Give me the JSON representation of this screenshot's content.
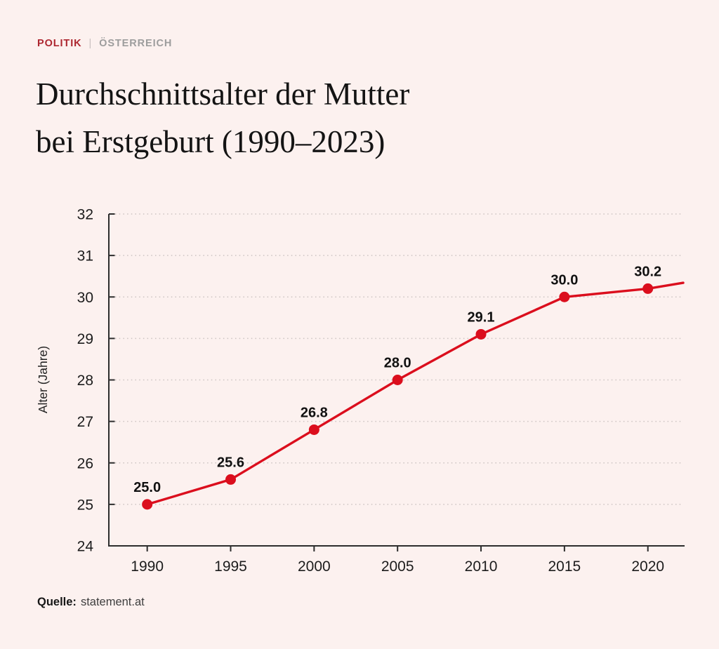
{
  "page": {
    "background": "#fcf1ef"
  },
  "kicker": {
    "category": "POLITIK",
    "separator": "|",
    "region": "ÖSTERREICH",
    "category_color": "#ad2730",
    "region_color": "#9d9d9d",
    "separator_color": "#c9bfbe"
  },
  "title": {
    "line1": "Durchschnittsalter der Mutter",
    "line2": "bei Erstgeburt (1990–2023)"
  },
  "source": {
    "label": "Quelle:",
    "value": "statement.at"
  },
  "chart_data": {
    "type": "line",
    "title": "Durchschnittsalter der Mutter bei Erstgeburt (1990–2023)",
    "x": [
      1990,
      1995,
      2000,
      2005,
      2010,
      2015,
      2020
    ],
    "values": [
      25.0,
      25.6,
      26.8,
      28.0,
      29.1,
      30.0,
      30.2
    ],
    "point_labels": [
      "25.0",
      "25.6",
      "26.8",
      "28.0",
      "29.1",
      "30.0",
      "30.2"
    ],
    "end_extension": {
      "year": 2023,
      "value": 30.4,
      "labeled": false
    },
    "xlabel": "",
    "ylabel": "Alter (Jahre)",
    "ylim": [
      24,
      32
    ],
    "xlim": [
      1987.7,
      2022.2
    ],
    "yticks": [
      24,
      25,
      26,
      27,
      28,
      29,
      30,
      31,
      32
    ],
    "xticks": [
      1990,
      1995,
      2000,
      2005,
      2010,
      2015,
      2020
    ],
    "grid": "horizontal-dotted",
    "legend": null,
    "line_color": "#db0e1d",
    "marker_color": "#db0e1d",
    "axis_color": "#2d2d2d",
    "grid_color": "#ccc4c2",
    "tick_label_color": "#1c1c1c",
    "point_label_color": "#111111"
  }
}
